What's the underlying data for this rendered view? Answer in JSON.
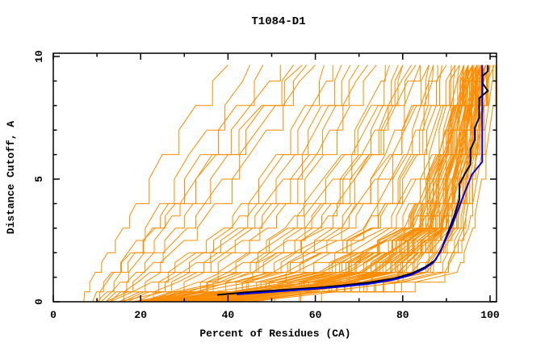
{
  "chart_data": {
    "type": "line",
    "title": "T1084-D1",
    "xlabel": "Percent of Residues (CA)",
    "ylabel": "Distance Cutoff, A",
    "xlim": [
      0,
      101.5
    ],
    "ylim": [
      0,
      10.1
    ],
    "grid": false,
    "legend": "none",
    "x_major_ticks": [
      0,
      20,
      40,
      60,
      80,
      100
    ],
    "x_minor_ticks": [
      10,
      30,
      50,
      70,
      90
    ],
    "y_major_ticks": [
      0,
      5,
      10
    ],
    "y_minor_ticks": [
      1,
      2,
      3,
      4,
      6,
      7,
      8,
      9
    ],
    "colors": {
      "model_curves": "#ff8c00",
      "highlight_blue": "#0000e0",
      "highlight_black": "#000000",
      "frame": "#000000",
      "background": "#ffffff"
    },
    "cutoff_levels": [
      0,
      1,
      3,
      6,
      9.65
    ],
    "orange_series_x_at_levels": [
      [
        7,
        10,
        17,
        26,
        40
      ],
      [
        8,
        12,
        20,
        30,
        45
      ],
      [
        10,
        14,
        22,
        33,
        48
      ],
      [
        11,
        16,
        25,
        36,
        52
      ],
      [
        12,
        18,
        28,
        40,
        55
      ],
      [
        13,
        20,
        31,
        43,
        58
      ],
      [
        9,
        13,
        24,
        38,
        57
      ],
      [
        14,
        22,
        34,
        46,
        60
      ],
      [
        12,
        22,
        38,
        50,
        62
      ],
      [
        13,
        24,
        40,
        52,
        64
      ],
      [
        15,
        26,
        42,
        55,
        66
      ],
      [
        16,
        28,
        44,
        57,
        68
      ],
      [
        17,
        30,
        46,
        59,
        70
      ],
      [
        18,
        32,
        48,
        61,
        72
      ],
      [
        19,
        34,
        50,
        63,
        74
      ],
      [
        20,
        35,
        52,
        65,
        76
      ],
      [
        21,
        36,
        53,
        66,
        77
      ],
      [
        22,
        38,
        55,
        68,
        79
      ],
      [
        23,
        40,
        57,
        70,
        80
      ],
      [
        24,
        42,
        58,
        71,
        82
      ],
      [
        25,
        44,
        60,
        73,
        83
      ],
      [
        26,
        45,
        62,
        74,
        84
      ],
      [
        27,
        46,
        63,
        76,
        86
      ],
      [
        28,
        48,
        65,
        77,
        87
      ],
      [
        15,
        40,
        62,
        72,
        80
      ],
      [
        17,
        44,
        66,
        76,
        84
      ],
      [
        19,
        48,
        68,
        78,
        86
      ],
      [
        21,
        52,
        72,
        81,
        88
      ],
      [
        23,
        55,
        74,
        83,
        90
      ],
      [
        25,
        58,
        76,
        85,
        91
      ],
      [
        27,
        60,
        78,
        86,
        92
      ],
      [
        29,
        62,
        80,
        88,
        93
      ],
      [
        31,
        64,
        81,
        89,
        94
      ],
      [
        33,
        66,
        82,
        90,
        95
      ],
      [
        20,
        50,
        74,
        84,
        92
      ],
      [
        22,
        54,
        77,
        86,
        93
      ],
      [
        24,
        57,
        79,
        87,
        94
      ],
      [
        26,
        60,
        81,
        89,
        95
      ],
      [
        28,
        63,
        83,
        90,
        96
      ],
      [
        30,
        66,
        84,
        91,
        96
      ],
      [
        32,
        68,
        85,
        92,
        97
      ],
      [
        34,
        70,
        86,
        93,
        97
      ],
      [
        36,
        72,
        87,
        93,
        98
      ],
      [
        16,
        46,
        70,
        80,
        87
      ],
      [
        18,
        50,
        72,
        82,
        89
      ],
      [
        35,
        71,
        88,
        94,
        98
      ],
      [
        37,
        74,
        89,
        95,
        99
      ],
      [
        38,
        76,
        90,
        95,
        99
      ],
      [
        25,
        70,
        86,
        92,
        96
      ],
      [
        27,
        73,
        87,
        93,
        97
      ],
      [
        29,
        75,
        88,
        94,
        97
      ],
      [
        31,
        77,
        89,
        94,
        98
      ],
      [
        33,
        79,
        90,
        95,
        98
      ],
      [
        35,
        81,
        91,
        95,
        99
      ],
      [
        37,
        83,
        92,
        96,
        99
      ],
      [
        39,
        85,
        92,
        96,
        100
      ],
      [
        40,
        86,
        93,
        97,
        100
      ],
      [
        42,
        88,
        94,
        97,
        100
      ],
      [
        24,
        68,
        85,
        91,
        96
      ],
      [
        26,
        72,
        87,
        93,
        97
      ],
      [
        28,
        74,
        88,
        93,
        97
      ],
      [
        30,
        76,
        89,
        94,
        98
      ],
      [
        32,
        78,
        90,
        94,
        98
      ],
      [
        34,
        80,
        91,
        95,
        98
      ],
      [
        36,
        82,
        91,
        95,
        99
      ],
      [
        38,
        84,
        92,
        96,
        99
      ],
      [
        41,
        87,
        93,
        96,
        100
      ],
      [
        43,
        89,
        94,
        97,
        100
      ],
      [
        22,
        66,
        84,
        90,
        95
      ],
      [
        23,
        69,
        86,
        92,
        96
      ],
      [
        44,
        90,
        95,
        98,
        101
      ],
      [
        45,
        91,
        95,
        98,
        101
      ],
      [
        20,
        55,
        80,
        88,
        94
      ],
      [
        22,
        58,
        82,
        89,
        95
      ],
      [
        24,
        61,
        83,
        90,
        95
      ],
      [
        26,
        64,
        84,
        90,
        96
      ],
      [
        28,
        67,
        85,
        91,
        96
      ],
      [
        30,
        70,
        86,
        91,
        97
      ],
      [
        32,
        72,
        87,
        92,
        97
      ],
      [
        34,
        74,
        88,
        92,
        97
      ],
      [
        36,
        76,
        88,
        93,
        98
      ],
      [
        38,
        78,
        89,
        93,
        98
      ],
      [
        21,
        57,
        81,
        88,
        94
      ],
      [
        23,
        60,
        82,
        89,
        95
      ],
      [
        25,
        63,
        84,
        90,
        96
      ],
      [
        27,
        66,
        85,
        91,
        96
      ],
      [
        29,
        69,
        86,
        91,
        97
      ],
      [
        31,
        71,
        86,
        92,
        97
      ],
      [
        33,
        73,
        87,
        92,
        98
      ],
      [
        35,
        75,
        88,
        93,
        98
      ],
      [
        39,
        80,
        90,
        94,
        99
      ],
      [
        41,
        82,
        90,
        94,
        99
      ]
    ],
    "blue_series": [
      [
        42,
        0.3
      ],
      [
        50,
        0.4
      ],
      [
        58,
        0.5
      ],
      [
        66,
        0.62
      ],
      [
        72,
        0.72
      ],
      [
        78,
        0.9
      ],
      [
        82,
        1.1
      ],
      [
        85,
        1.35
      ],
      [
        87,
        1.6
      ],
      [
        88.5,
        2.0
      ],
      [
        90,
        2.6
      ],
      [
        91.5,
        3.2
      ],
      [
        93,
        3.9
      ],
      [
        94.5,
        4.6
      ],
      [
        95.9,
        5.2
      ],
      [
        98.2,
        5.7
      ],
      [
        98.2,
        9.65
      ]
    ],
    "black_series": [
      [
        37.5,
        0.28
      ],
      [
        44,
        0.38
      ],
      [
        52,
        0.48
      ],
      [
        60,
        0.57
      ],
      [
        66,
        0.66
      ],
      [
        72,
        0.78
      ],
      [
        78,
        0.95
      ],
      [
        82,
        1.15
      ],
      [
        85,
        1.4
      ],
      [
        87.5,
        1.7
      ],
      [
        89,
        2.2
      ],
      [
        90.5,
        2.9
      ],
      [
        92,
        3.6
      ],
      [
        93,
        4.2
      ],
      [
        93,
        4.8
      ],
      [
        94.2,
        5.2
      ],
      [
        95.5,
        5.6
      ],
      [
        95.5,
        6.2
      ],
      [
        96.5,
        6.6
      ],
      [
        96.5,
        7.1
      ],
      [
        97.5,
        7.5
      ],
      [
        97.5,
        8.3
      ],
      [
        99.5,
        8.6
      ],
      [
        98.3,
        8.9
      ],
      [
        98.3,
        9.2
      ],
      [
        99.5,
        9.4
      ],
      [
        99.5,
        9.65
      ]
    ]
  }
}
